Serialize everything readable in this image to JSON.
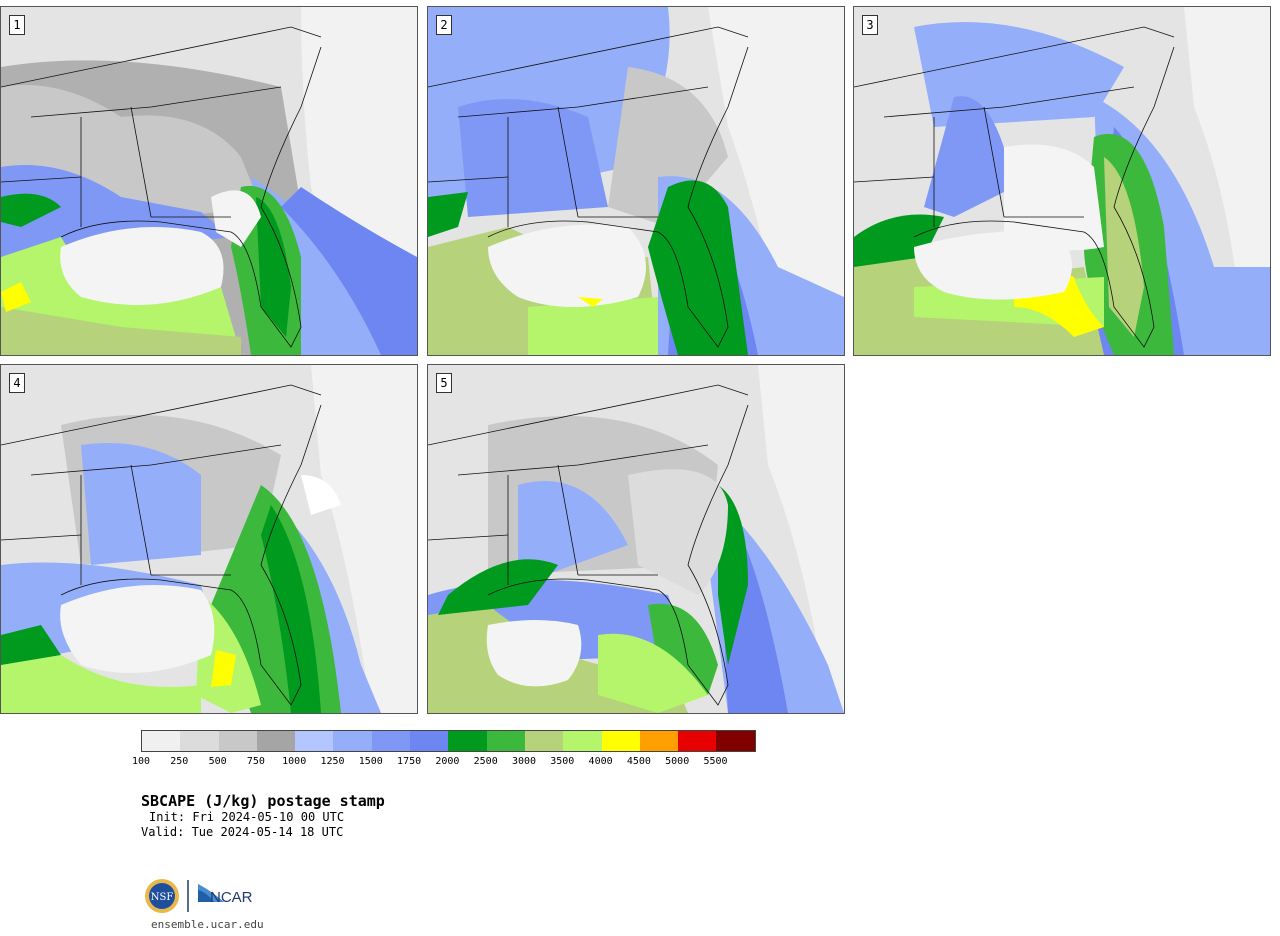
{
  "panels": [
    {
      "label": "1"
    },
    {
      "label": "2"
    },
    {
      "label": "3"
    },
    {
      "label": "4"
    },
    {
      "label": "5"
    }
  ],
  "legend": {
    "colors": [
      "#f0f0f0",
      "#dcdcdc",
      "#c8c8c8",
      "#a5a5a5",
      "#b3c6ff",
      "#94aefa",
      "#7f98f6",
      "#6e86f2",
      "#009a1e",
      "#3cb83c",
      "#b6d27a",
      "#b4f56c",
      "#ffff00",
      "#ffa000",
      "#e60000",
      "#800000"
    ],
    "ticks": [
      "100",
      "250",
      "500",
      "750",
      "1000",
      "1250",
      "1500",
      "1750",
      "2000",
      "2500",
      "3000",
      "3500",
      "4000",
      "4500",
      "5000",
      "5500"
    ]
  },
  "title": "SBCAPE (J/kg) postage stamp",
  "init": "Init: Fri 2024-05-10 00 UTC",
  "valid": "Valid: Tue 2024-05-14 18 UTC",
  "logos": {
    "nsf": "NSF",
    "ncar": "NCAR"
  },
  "url": "ensemble.ucar.edu"
}
